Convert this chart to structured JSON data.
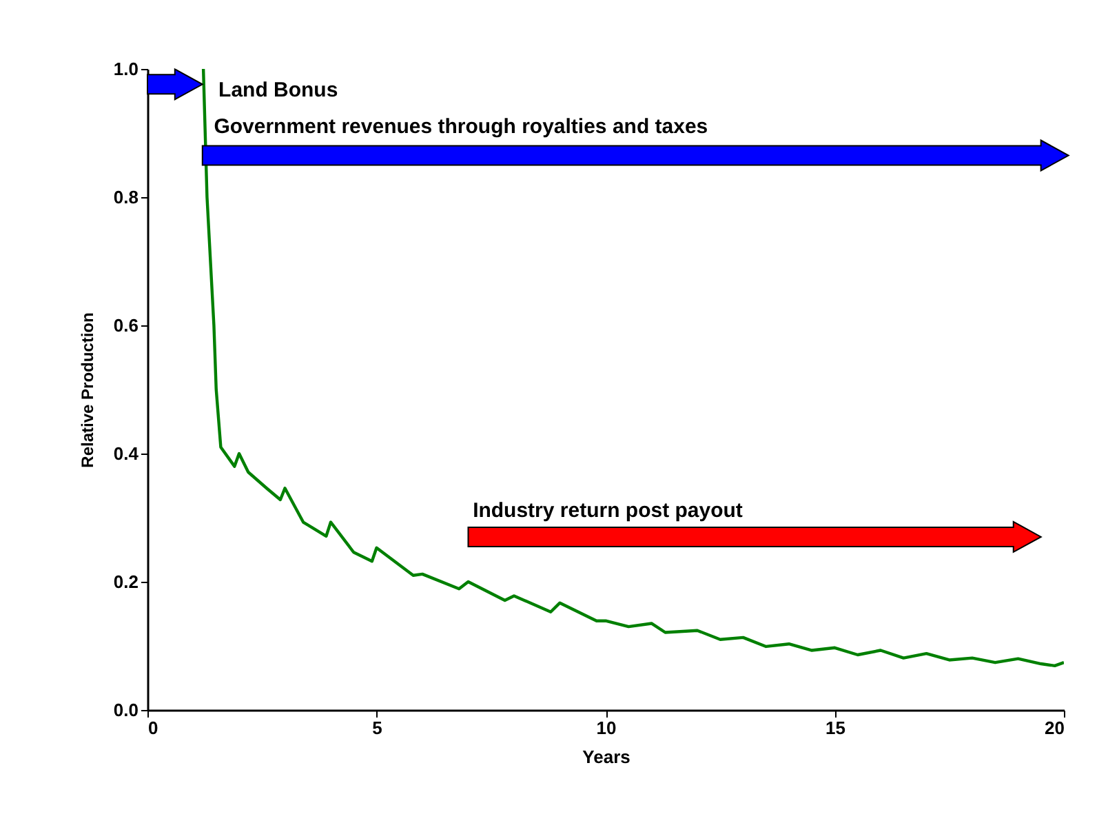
{
  "chart_data": {
    "type": "line",
    "xlabel": "Years",
    "ylabel": "Relative Production",
    "annotations": [
      "Land Bonus",
      "Government revenues through royalties and taxes",
      "Industry return post payout"
    ],
    "series": [
      {
        "color": "#008000",
        "x": [
          1.22,
          1.3,
          1.45,
          1.5,
          1.6,
          1.9,
          2.0,
          2.2,
          2.6,
          2.9,
          3.0,
          3.4,
          3.9,
          4.0,
          4.5,
          4.9,
          5.0,
          5.8,
          6.0,
          6.8,
          7.0,
          7.8,
          8.0,
          8.8,
          9.0,
          9.8,
          10.0,
          10.5,
          11.0,
          11.3,
          12.0,
          12.5,
          13.0,
          13.5,
          14.0,
          14.5,
          15.0,
          15.5,
          16.0,
          16.5,
          17.0,
          17.5,
          18.0,
          18.5,
          19.0,
          19.5,
          19.8,
          20.0
        ],
        "values": [
          1.0,
          0.8,
          0.6,
          0.5,
          0.41,
          0.38,
          0.4,
          0.371,
          0.346,
          0.328,
          0.346,
          0.293,
          0.271,
          0.293,
          0.246,
          0.232,
          0.253,
          0.21,
          0.212,
          0.189,
          0.2,
          0.171,
          0.178,
          0.153,
          0.167,
          0.139,
          0.139,
          0.13,
          0.135,
          0.121,
          0.124,
          0.11,
          0.113,
          0.099,
          0.103,
          0.093,
          0.097,
          0.086,
          0.093,
          0.081,
          0.088,
          0.078,
          0.081,
          0.074,
          0.08,
          0.072,
          0.069,
          0.074
        ]
      }
    ],
    "xlim": [
      0,
      20
    ],
    "xticks": [
      0,
      5,
      10,
      15,
      20
    ],
    "ylim": [
      0,
      1.0
    ],
    "yticks": [
      {
        "value": 0,
        "label": "0.0"
      },
      0.2,
      0.4,
      0.6,
      0.8,
      {
        "value": 1.0,
        "label": "1.0"
      }
    ],
    "grid": false,
    "marker": "none",
    "line_style": "solid"
  }
}
